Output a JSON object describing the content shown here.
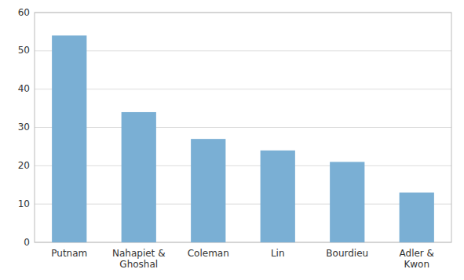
{
  "chart_data": {
    "type": "bar",
    "categories": [
      "Putnam",
      "Nahapiet &\nGhoshal",
      "Coleman",
      "Lin",
      "Bourdieu",
      "Adler &\nKwon"
    ],
    "values": [
      54,
      34,
      27,
      24,
      21,
      13
    ],
    "color": "#7aafd4",
    "ylim": [
      0,
      60
    ],
    "yticks": [
      0,
      10,
      20,
      30,
      40,
      50,
      60
    ],
    "grid": true
  }
}
